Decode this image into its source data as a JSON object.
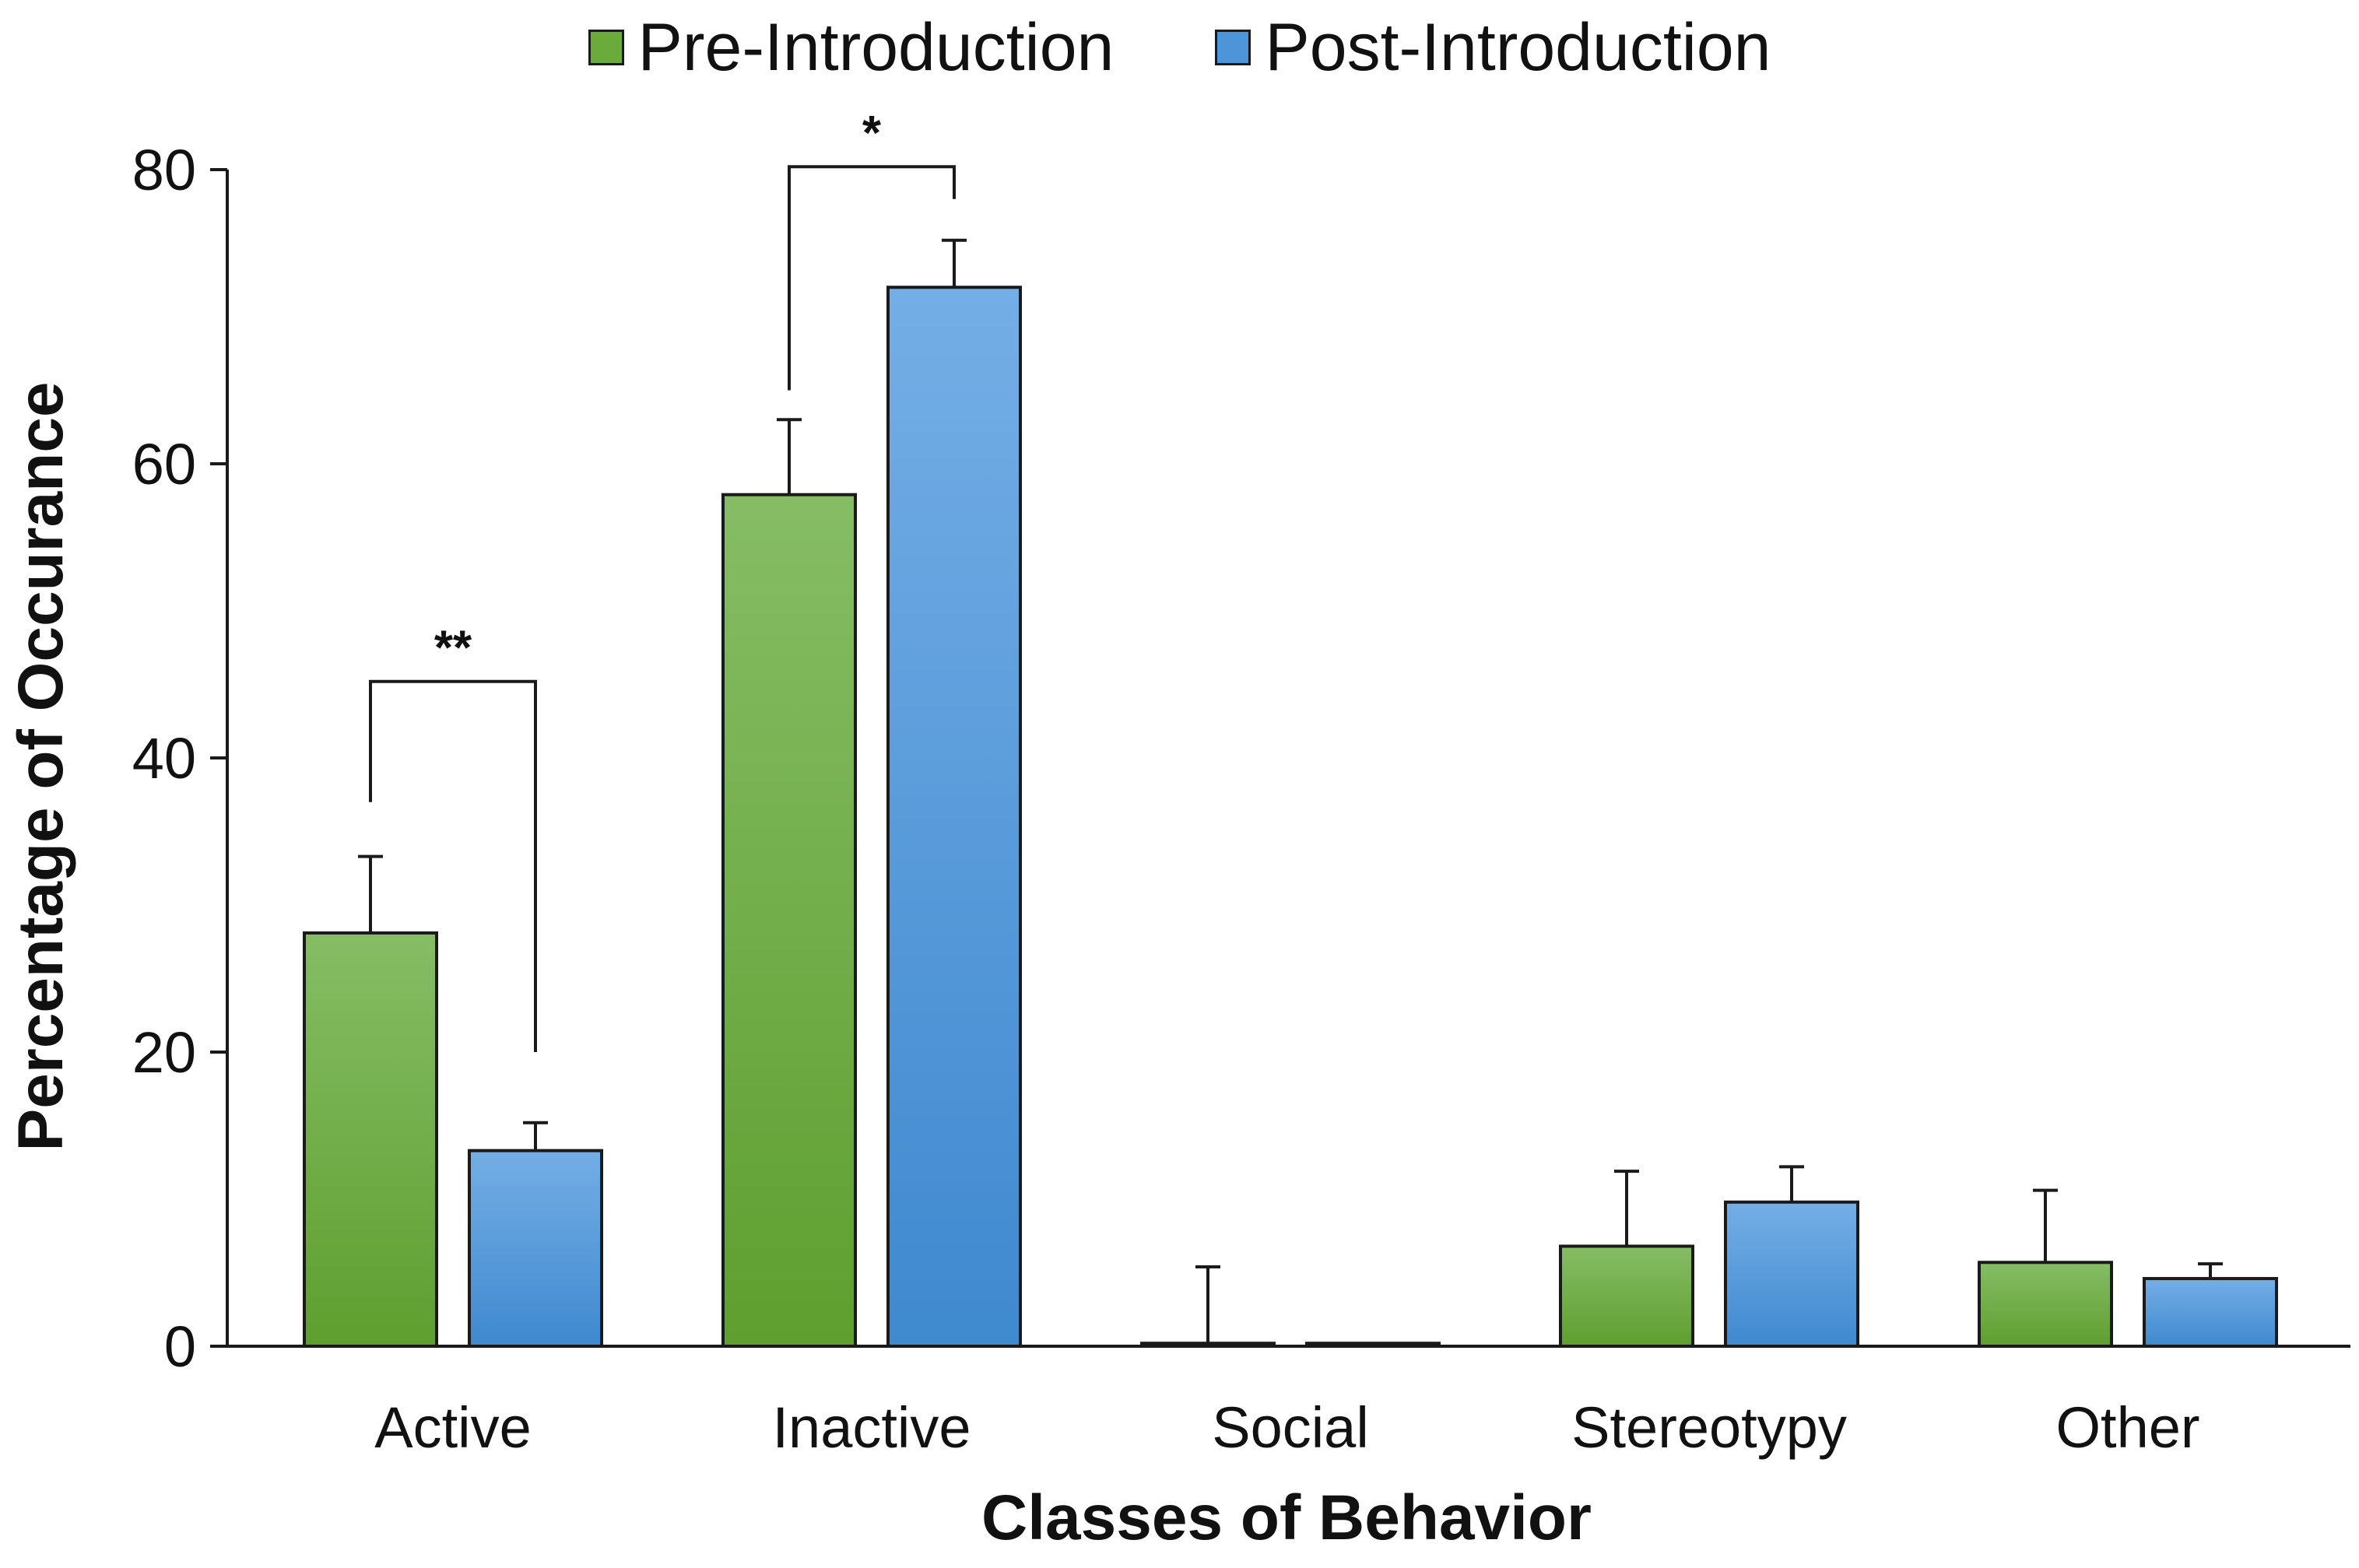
{
  "colors": {
    "pre_top": "#86bd65",
    "pre_bottom": "#5e9f2f",
    "post_top": "#74aee6",
    "post_bottom": "#3f89cf",
    "axis": "#1a1a1a"
  },
  "legend": {
    "items": [
      {
        "label": "Pre-Introduction",
        "color": "#6aab3c"
      },
      {
        "label": "Post-Introduction",
        "color": "#4d95d8"
      }
    ]
  },
  "chart_data": {
    "type": "bar",
    "title": "",
    "xlabel": "Classes of Behavior",
    "ylabel": "Percentage of Occurance",
    "ylim": [
      0,
      80
    ],
    "yticks": [
      0,
      20,
      40,
      60,
      80
    ],
    "grid": false,
    "legend_position": "top-center",
    "categories": [
      "Active",
      "Inactive",
      "Social",
      "Stereotypy",
      "Other"
    ],
    "series": [
      {
        "name": "Pre-Introduction",
        "values": [
          28.1,
          57.9,
          0.2,
          6.8,
          5.7
        ],
        "errors": [
          5.2,
          5.1,
          5.2,
          5.1,
          4.9
        ]
      },
      {
        "name": "Post-Introduction",
        "values": [
          13.3,
          72.0,
          0.2,
          9.8,
          4.6
        ],
        "errors": [
          1.9,
          3.2,
          0.0,
          2.4,
          1.0
        ]
      }
    ],
    "annotations": [
      {
        "label": "**",
        "category": "Active",
        "left_y": 37,
        "right_y": 20,
        "bracket_y": 45.2
      },
      {
        "label": "*",
        "category": "Inactive",
        "left_y": 65,
        "right_y": 78,
        "bracket_y": 80.2
      }
    ]
  }
}
